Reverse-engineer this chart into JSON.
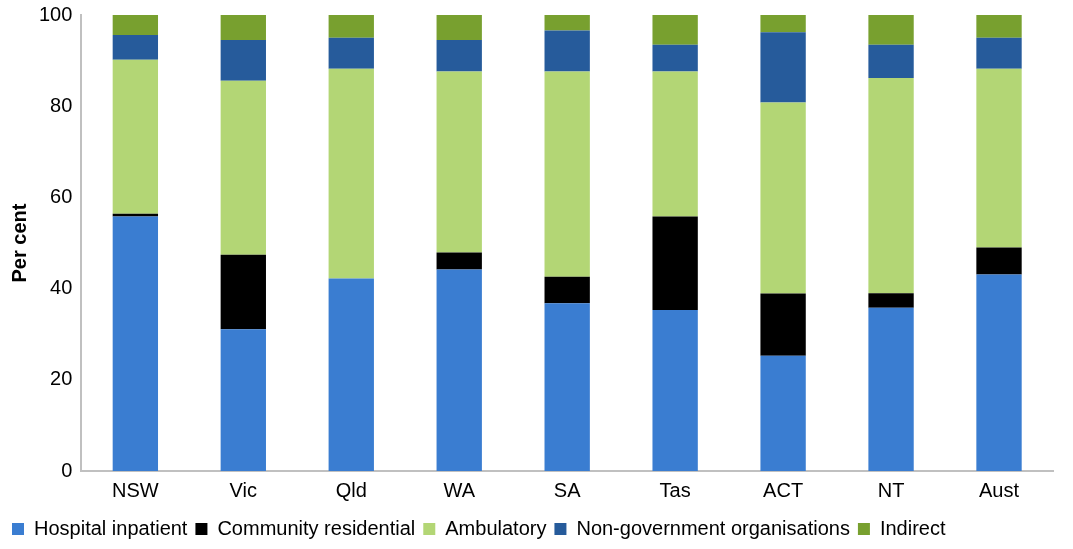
{
  "chart_data": {
    "type": "bar",
    "ylabel": "Per cent",
    "stacked": true,
    "categories": [
      "NSW",
      "Vic",
      "Qld",
      "WA",
      "SA",
      "Tas",
      "ACT",
      "NT",
      "Aust"
    ],
    "series": [
      {
        "name": "Hospital inpatient",
        "color": "#3a7dd1",
        "values": [
          55.8,
          31.1,
          42.2,
          44.2,
          36.8,
          35.3,
          25.3,
          35.8,
          43.1
        ]
      },
      {
        "name": "Community residential",
        "color": "#000000",
        "values": [
          0.6,
          16.3,
          0,
          3.7,
          5.8,
          20.5,
          13.6,
          3.2,
          5.9
        ]
      },
      {
        "name": "Ambulatory",
        "color": "#b3d675",
        "values": [
          33.8,
          38.2,
          46.0,
          39.7,
          45.0,
          31.8,
          41.9,
          47.2,
          39.2
        ]
      },
      {
        "name": "Non-government organisations",
        "color": "#265b9b",
        "values": [
          5.4,
          8.9,
          6.8,
          6.9,
          9.0,
          5.9,
          15.4,
          7.3,
          6.8
        ]
      },
      {
        "name": "Indirect",
        "color": "#78a02f",
        "values": [
          4.4,
          5.5,
          5.0,
          5.5,
          3.4,
          6.5,
          3.8,
          6.5,
          5.0
        ]
      }
    ],
    "ylim": [
      0,
      100
    ],
    "yticks": [
      0,
      20,
      40,
      60,
      80,
      100
    ],
    "grid": false,
    "legend": "bottom"
  }
}
